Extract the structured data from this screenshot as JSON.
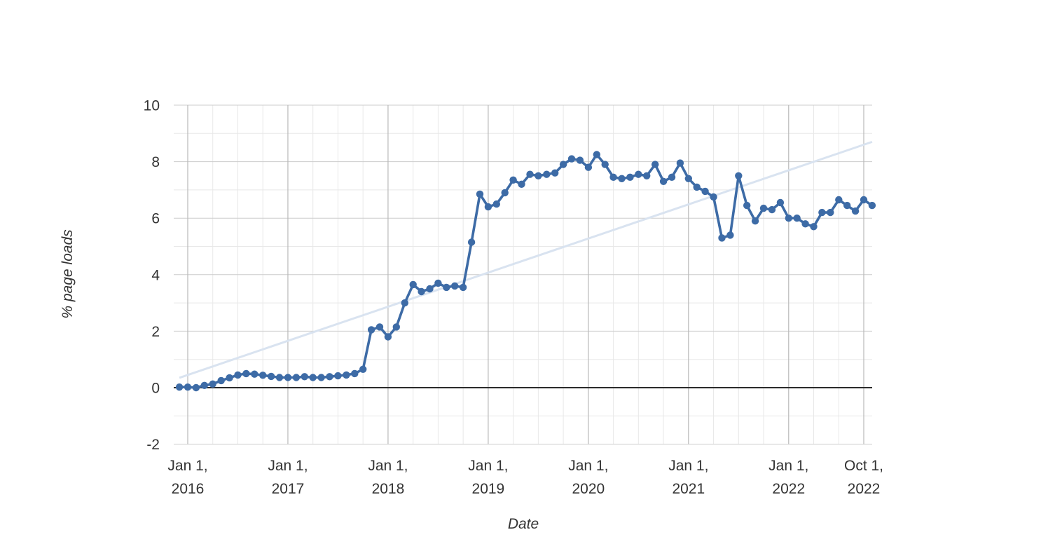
{
  "page": {
    "background_color": "#ffffff"
  },
  "chart_data": {
    "type": "line",
    "title": "",
    "xlabel": "Date",
    "ylabel": "% page loads",
    "ylim": [
      -2,
      10
    ],
    "y_ticks": [
      -2,
      0,
      2,
      4,
      6,
      8,
      10
    ],
    "y_minor_ticks": [
      -1,
      1,
      3,
      5,
      7,
      9
    ],
    "grid": {
      "major": true,
      "minor": true,
      "x_minor_interval_months": 3
    },
    "legend_position": "none",
    "x_axis": {
      "start": "2015-12",
      "end": "2022-11",
      "freq": "monthly",
      "tick_labels": [
        {
          "line1": "Jan 1,",
          "line2": "2016",
          "month_index": 1
        },
        {
          "line1": "Jan 1,",
          "line2": "2017",
          "month_index": 13
        },
        {
          "line1": "Jan 1,",
          "line2": "2018",
          "month_index": 25
        },
        {
          "line1": "Jan 1,",
          "line2": "2019",
          "month_index": 37
        },
        {
          "line1": "Jan 1,",
          "line2": "2020",
          "month_index": 49
        },
        {
          "line1": "Jan 1,",
          "line2": "2021",
          "month_index": 61
        },
        {
          "line1": "Jan 1,",
          "line2": "2022",
          "month_index": 73
        },
        {
          "line1": "Oct 1,",
          "line2": "2022",
          "month_index": 82
        }
      ]
    },
    "series": [
      {
        "name": "% page loads",
        "color": "#3d6ba6",
        "marker": "circle",
        "values": [
          0.02,
          0.02,
          0.0,
          0.08,
          0.13,
          0.25,
          0.35,
          0.45,
          0.5,
          0.48,
          0.44,
          0.4,
          0.36,
          0.36,
          0.36,
          0.39,
          0.36,
          0.36,
          0.39,
          0.42,
          0.45,
          0.5,
          0.65,
          2.05,
          2.15,
          1.8,
          2.15,
          3.0,
          3.65,
          3.4,
          3.5,
          3.7,
          3.55,
          3.6,
          3.55,
          5.15,
          6.85,
          6.4,
          6.5,
          6.9,
          7.35,
          7.2,
          7.55,
          7.5,
          7.55,
          7.6,
          7.9,
          8.1,
          8.05,
          7.8,
          8.25,
          7.9,
          7.45,
          7.4,
          7.45,
          7.55,
          7.5,
          7.9,
          7.3,
          7.45,
          7.95,
          7.4,
          7.1,
          6.95,
          6.75,
          5.3,
          5.4,
          7.5,
          6.45,
          5.9,
          6.35,
          6.3,
          6.55,
          6.0,
          6.0,
          5.8,
          5.7,
          6.2,
          6.2,
          6.65,
          6.45,
          6.25,
          6.65,
          6.45
        ]
      },
      {
        "name": "linear trend",
        "color": "#d9e3f0",
        "style": "straight",
        "endpoints_month_value": [
          [
            0,
            0.35
          ],
          [
            83,
            8.7
          ]
        ]
      }
    ],
    "colors": {
      "series_line": "#3d6ba6",
      "trend_line": "#d9e3f0",
      "zero_line": "#2b2b2b",
      "major_grid_x": "#b9b9b9",
      "major_grid_y": "#cccccc",
      "minor_grid": "#e8e8e8",
      "tick_text": "#333333"
    }
  }
}
